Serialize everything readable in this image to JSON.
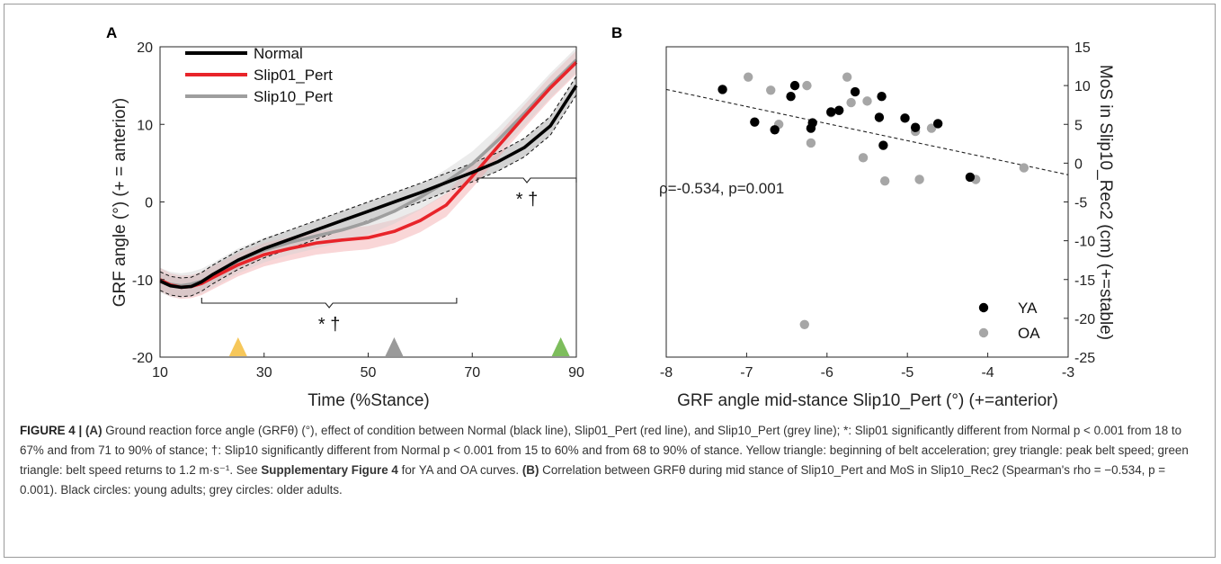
{
  "figure": {
    "panel_a_label": "A",
    "panel_b_label": "B",
    "caption": {
      "figure_label": "FIGURE 4 | ",
      "a_label": "(A)",
      "a_text": " Ground reaction force angle (GRFθ) (°), effect of condition between Normal (black line), Slip01_Pert (red line), and Slip10_Pert (grey line); *: Slip01 significantly different from Normal p < 0.001 from 18 to 67% and from 71 to 90% of stance; †: Slip10 significantly different from Normal p < 0.001 from 15 to 60% and from 68 to 90% of stance. Yellow triangle: beginning of belt acceleration; grey triangle: peak belt speed; green triangle: belt speed returns to 1.2 m·s⁻¹. See ",
      "supp_label": "Supplementary Figure 4",
      "supp_text": " for YA and OA curves. ",
      "b_label": "(B)",
      "b_text": " Correlation between GRFθ during mid stance of Slip10_Pert and MoS in Slip10_Rec2 (Spearman's rho = −0.534, p = 0.001). Black circles: young adults; grey circles: older adults."
    }
  },
  "chart_data": [
    {
      "panel": "A",
      "type": "line",
      "xlabel": "Time (%Stance)",
      "ylabel": "GRF angle (°) (+ = anterior)",
      "xlim": [
        10,
        90
      ],
      "ylim": [
        -20,
        20
      ],
      "xticks": [
        10,
        30,
        50,
        70,
        90
      ],
      "yticks": [
        -20,
        -10,
        0,
        10,
        20
      ],
      "grid": false,
      "legend": "top-left",
      "series": [
        {
          "name": "Normal",
          "color": "#000000",
          "band_color": "#9e9e9e",
          "x": [
            10,
            12,
            14,
            16,
            18,
            20,
            25,
            30,
            35,
            40,
            45,
            50,
            55,
            60,
            65,
            70,
            75,
            80,
            85,
            90
          ],
          "values": [
            -10.2,
            -10.8,
            -11.0,
            -10.9,
            -10.3,
            -9.4,
            -7.5,
            -6.0,
            -4.8,
            -3.6,
            -2.4,
            -1.2,
            0.0,
            1.2,
            2.5,
            3.8,
            5.2,
            7.0,
            9.8,
            15.0
          ]
        },
        {
          "name": "Slip01_Pert",
          "color": "#e8242a",
          "band_color": "#f2a5a7",
          "x": [
            10,
            12,
            14,
            16,
            18,
            20,
            25,
            30,
            35,
            40,
            45,
            50,
            55,
            60,
            65,
            70,
            75,
            80,
            85,
            90
          ],
          "values": [
            -10.0,
            -10.7,
            -11.0,
            -10.9,
            -10.5,
            -9.8,
            -8.1,
            -6.8,
            -6.0,
            -5.3,
            -4.9,
            -4.6,
            -3.8,
            -2.4,
            -0.4,
            3.3,
            7.2,
            11.0,
            14.7,
            18.0
          ]
        },
        {
          "name": "Slip10_Pert",
          "color": "#9e9e9e",
          "band_color": "#d3d3d3",
          "x": [
            10,
            12,
            14,
            16,
            18,
            20,
            25,
            30,
            35,
            40,
            45,
            50,
            55,
            60,
            65,
            70,
            75,
            80,
            85,
            90
          ],
          "values": [
            -10.1,
            -10.6,
            -10.8,
            -10.6,
            -10.2,
            -9.5,
            -7.6,
            -6.2,
            -5.2,
            -4.4,
            -3.6,
            -2.6,
            -1.2,
            0.6,
            2.6,
            4.9,
            8.0,
            11.4,
            15.0,
            18.3
          ]
        }
      ],
      "brackets": [
        {
          "x_start": 18,
          "x_end": 67,
          "label": "* †"
        },
        {
          "x_start": 71,
          "x_end": 90,
          "label": "* †"
        }
      ],
      "markers": [
        {
          "x": 25,
          "color": "#f6c75a",
          "meaning": "beginning of belt acceleration"
        },
        {
          "x": 55,
          "color": "#9a9a9a",
          "meaning": "peak belt speed"
        },
        {
          "x": 87,
          "color": "#7dbd5c",
          "meaning": "belt speed returns to 1.2 m·s⁻¹"
        }
      ]
    },
    {
      "panel": "B",
      "type": "scatter",
      "xlabel": "GRF angle mid-stance Slip10_Pert (°) (+=anterior)",
      "ylabel": "MoS in Slip10_Rec2 (cm) (+=stable)",
      "xlim": [
        -8,
        -3
      ],
      "ylim": [
        -25,
        15
      ],
      "xticks": [
        -8,
        -7,
        -6,
        -5,
        -4,
        -3
      ],
      "yticks": [
        -25,
        -20,
        -15,
        -10,
        -5,
        0,
        5,
        10,
        15
      ],
      "y_axis_side": "right",
      "grid": false,
      "legend": "bottom-right",
      "annotation": "ρ=-0.534, p=0.001",
      "trendline": {
        "x": [
          -8,
          -3
        ],
        "y": [
          9.5,
          -1.5
        ],
        "style": "dashed"
      },
      "series": [
        {
          "name": "YA",
          "color": "#000000",
          "points": [
            [
              -7.3,
              9.5
            ],
            [
              -6.9,
              5.3
            ],
            [
              -6.65,
              4.3
            ],
            [
              -6.45,
              8.6
            ],
            [
              -6.4,
              10.0
            ],
            [
              -6.2,
              4.5
            ],
            [
              -6.18,
              5.2
            ],
            [
              -5.95,
              6.6
            ],
            [
              -5.85,
              6.8
            ],
            [
              -5.65,
              9.2
            ],
            [
              -5.35,
              5.9
            ],
            [
              -5.32,
              8.6
            ],
            [
              -5.3,
              2.3
            ],
            [
              -5.03,
              5.8
            ],
            [
              -4.9,
              4.6
            ],
            [
              -4.62,
              5.1
            ],
            [
              -4.22,
              -1.8
            ]
          ]
        },
        {
          "name": "OA",
          "color": "#a6a6a6",
          "points": [
            [
              -6.98,
              11.1
            ],
            [
              -6.7,
              9.4
            ],
            [
              -6.6,
              5.0
            ],
            [
              -6.25,
              10.0
            ],
            [
              -6.2,
              2.6
            ],
            [
              -6.28,
              -20.8
            ],
            [
              -5.95,
              6.5
            ],
            [
              -5.75,
              11.1
            ],
            [
              -5.7,
              7.8
            ],
            [
              -5.55,
              0.7
            ],
            [
              -5.5,
              8.0
            ],
            [
              -5.28,
              -2.3
            ],
            [
              -4.9,
              4.1
            ],
            [
              -4.85,
              -2.1
            ],
            [
              -4.7,
              4.5
            ],
            [
              -4.15,
              -2.1
            ],
            [
              -3.55,
              -0.6
            ]
          ]
        }
      ]
    }
  ]
}
